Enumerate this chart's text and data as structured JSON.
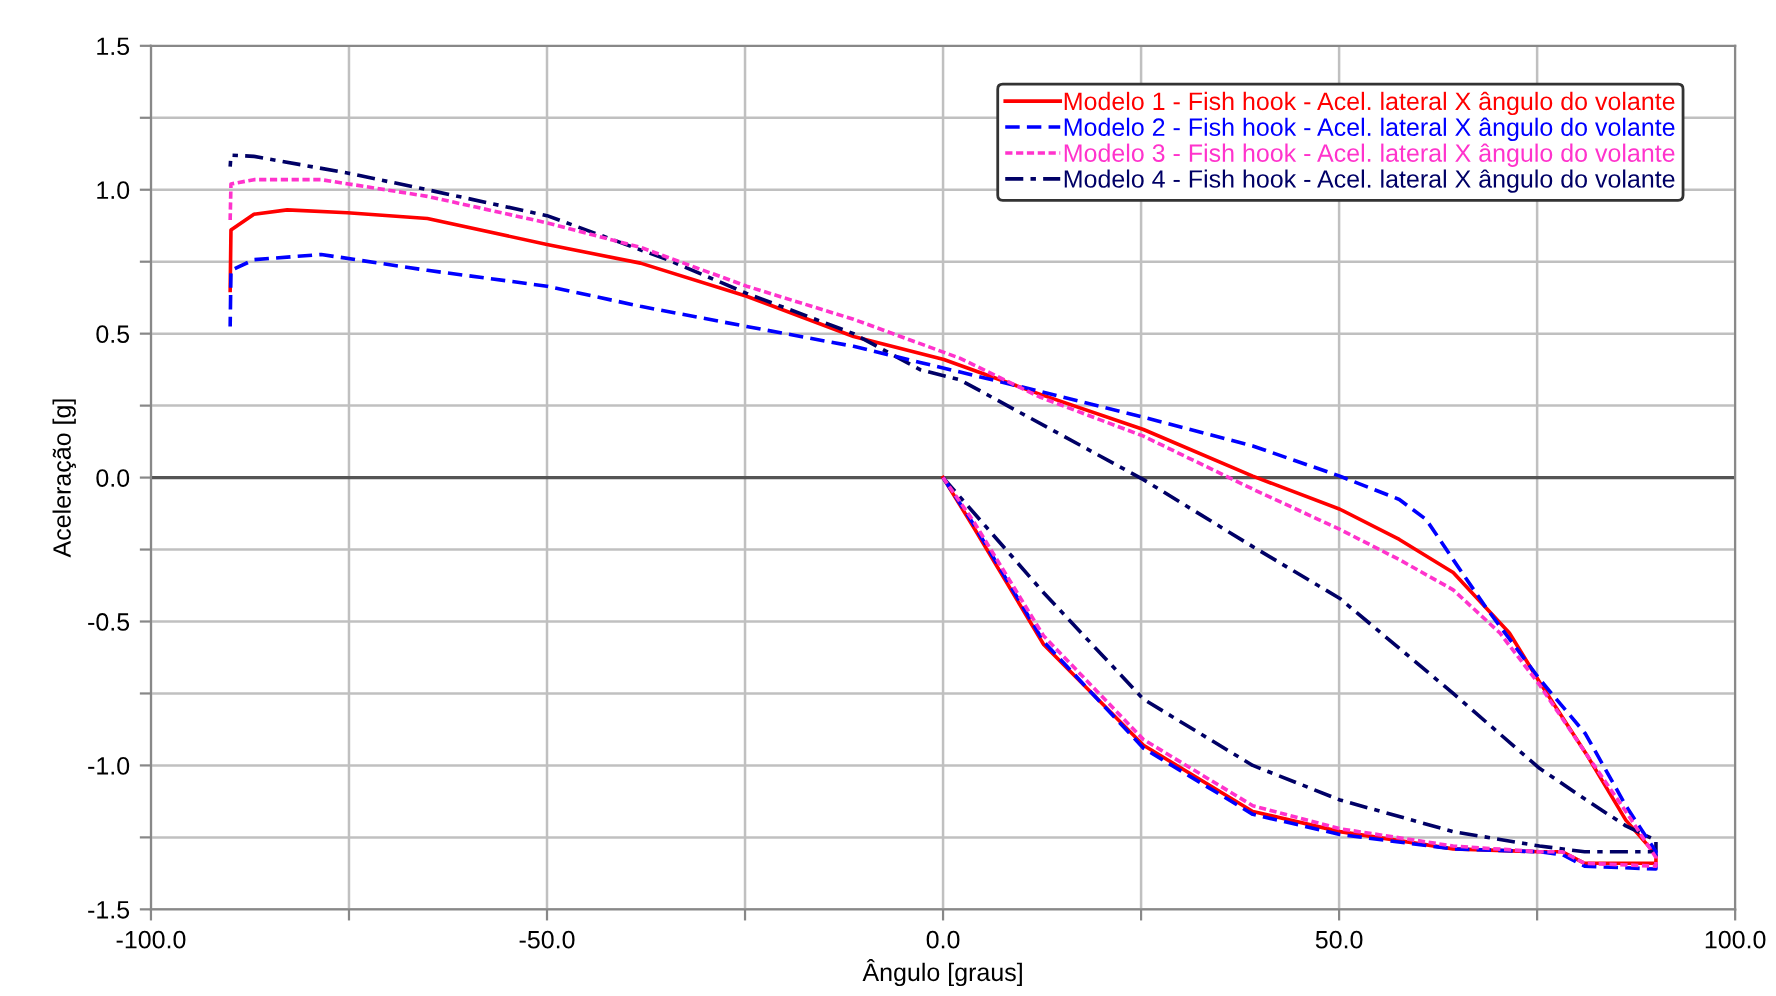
{
  "chart_data": {
    "type": "line",
    "xlabel": "Ângulo [graus]",
    "ylabel": "Aceleração [g]",
    "xlim": [
      -100,
      100
    ],
    "ylim": [
      -1.5,
      1.5
    ],
    "xticks": [
      {
        "value": -100,
        "label": "-100.0"
      },
      {
        "value": -75,
        "label": null
      },
      {
        "value": -50,
        "label": "-50.0"
      },
      {
        "value": -25,
        "label": null
      },
      {
        "value": 0,
        "label": "0.0"
      },
      {
        "value": 25,
        "label": null
      },
      {
        "value": 50,
        "label": "50.0"
      },
      {
        "value": 75,
        "label": null
      },
      {
        "value": 100,
        "label": "100.0"
      }
    ],
    "yticks": [
      {
        "value": -1.5,
        "label": "-1.5"
      },
      {
        "value": -1.25,
        "label": null
      },
      {
        "value": -1.0,
        "label": "-1.0"
      },
      {
        "value": -0.75,
        "label": null
      },
      {
        "value": -0.5,
        "label": "-0.5"
      },
      {
        "value": -0.25,
        "label": null
      },
      {
        "value": 0,
        "label": "0.0"
      },
      {
        "value": 0.25,
        "label": null
      },
      {
        "value": 0.5,
        "label": "0.5"
      },
      {
        "value": 0.75,
        "label": null
      },
      {
        "value": 1.0,
        "label": "1.0"
      },
      {
        "value": 1.25,
        "label": null
      },
      {
        "value": 1.5,
        "label": "1.5"
      }
    ],
    "grid": true,
    "legend": "top right",
    "marker": "none",
    "ref_lines": [
      {
        "axis": "y",
        "value": 0,
        "color": "#555555",
        "line_style": "solid"
      }
    ],
    "series": [
      {
        "name": "Modelo 1 - Fish hook - Acel. lateral X ângulo do volante",
        "color": "#ff0000",
        "line_style": "solid",
        "x": [
          0,
          3.8,
          12.7,
          25.3,
          39.1,
          50.1,
          64.4,
          75.3,
          78.2,
          81,
          90,
          90,
          86.2,
          81.2,
          75.3,
          71.5,
          64.4,
          57.6,
          50.1,
          39.1,
          25.3,
          12.2,
          0.1,
          -11.3,
          -24.8,
          -38.2,
          -50,
          -65.1,
          -75.2,
          -82.8,
          -87,
          -89.9,
          -90
        ],
        "values": [
          0,
          -0.17,
          -0.58,
          -0.93,
          -1.16,
          -1.23,
          -1.29,
          -1.3,
          -1.3,
          -1.34,
          -1.34,
          -1.31,
          -1.19,
          -0.96,
          -0.71,
          -0.54,
          -0.33,
          -0.215,
          -0.11,
          0.005,
          0.167,
          0.29,
          0.41,
          0.49,
          0.63,
          0.745,
          0.81,
          0.9,
          0.92,
          0.93,
          0.915,
          0.86,
          0.65
        ]
      },
      {
        "name": "Modelo 2 - Fish hook - Acel. lateral X ângulo do volante",
        "color": "#0000ff",
        "line_style": "dashed",
        "x": [
          0,
          3.8,
          12.7,
          25.3,
          39.1,
          50.1,
          64.4,
          75.3,
          78.2,
          81,
          90,
          90,
          86.2,
          81.1,
          75.3,
          68.5,
          64.4,
          61,
          57.6,
          50.1,
          39.1,
          25.3,
          12.2,
          -2.9,
          -11.3,
          -24.8,
          -38.2,
          -50,
          -65.1,
          -78.5,
          -87,
          -89.9,
          -90
        ],
        "values": [
          0,
          -0.16,
          -0.57,
          -0.94,
          -1.17,
          -1.24,
          -1.29,
          -1.3,
          -1.31,
          -1.35,
          -1.36,
          -1.3,
          -1.14,
          -0.89,
          -0.7,
          -0.45,
          -0.285,
          -0.146,
          -0.076,
          0.005,
          0.11,
          0.21,
          0.3,
          0.4,
          0.456,
          0.525,
          0.595,
          0.665,
          0.72,
          0.775,
          0.757,
          0.72,
          0.525
        ]
      },
      {
        "name": "Modelo 3 - Fish hook - Acel. lateral X ângulo do volante",
        "color": "#ff33cc",
        "line_style": "dotted",
        "x": [
          0,
          3.8,
          12.7,
          25.3,
          39.1,
          50.1,
          64.4,
          75.3,
          78.2,
          81,
          90,
          90,
          86.2,
          81.2,
          75.3,
          70.3,
          64.4,
          57.6,
          50.1,
          39.1,
          25.3,
          12.2,
          2.1,
          -11.3,
          -24.8,
          -38.2,
          -50,
          -65.1,
          -78.5,
          -87,
          -89.9,
          -90
        ],
        "values": [
          0,
          -0.15,
          -0.55,
          -0.91,
          -1.14,
          -1.22,
          -1.28,
          -1.3,
          -1.3,
          -1.34,
          -1.35,
          -1.32,
          -1.16,
          -0.96,
          -0.72,
          -0.54,
          -0.39,
          -0.285,
          -0.18,
          -0.04,
          0.144,
          0.28,
          0.415,
          0.55,
          0.665,
          0.8,
          0.885,
          0.977,
          1.035,
          1.035,
          1.02,
          0.895
        ]
      },
      {
        "name": "Modelo 4 - Fish hook - Acel. lateral X ângulo do volante",
        "color": "#000066",
        "line_style": "dashdot",
        "x": [
          0,
          12.7,
          25.3,
          39.1,
          50.1,
          64.4,
          75.3,
          81,
          90,
          90,
          86.2,
          81.2,
          75.3,
          64.4,
          50.1,
          39.1,
          25.3,
          2.1,
          -2.9,
          -11.3,
          -24.8,
          -34.8,
          -50,
          -65.1,
          -75.2,
          -87,
          -89.9,
          -90
        ],
        "values": [
          0,
          -0.4,
          -0.77,
          -1.0,
          -1.12,
          -1.23,
          -1.28,
          -1.3,
          -1.3,
          -1.26,
          -1.21,
          -1.12,
          -1.01,
          -0.75,
          -0.42,
          -0.24,
          -0.007,
          0.34,
          0.375,
          0.5,
          0.64,
          0.757,
          0.91,
          1.0,
          1.058,
          1.116,
          1.12,
          1.08
        ]
      }
    ]
  }
}
